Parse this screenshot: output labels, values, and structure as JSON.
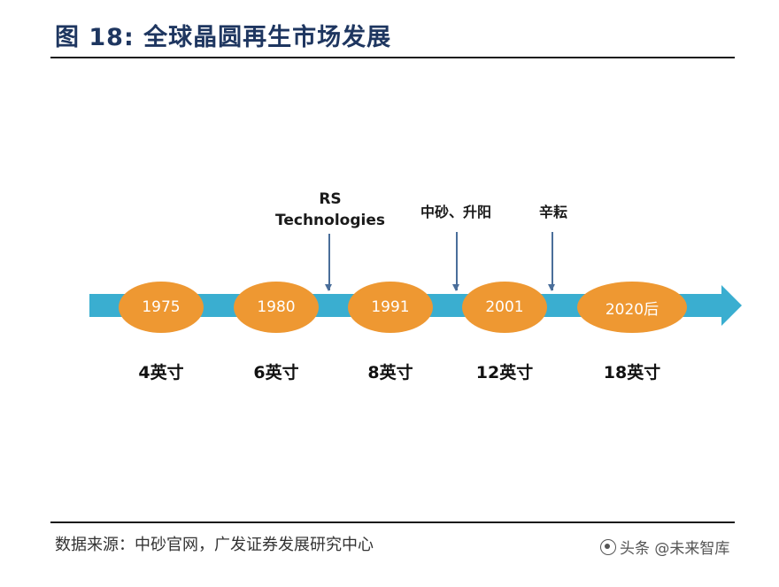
{
  "header": {
    "title": "图 18:  全球晶圆再生市场发展"
  },
  "timeline": {
    "nodes": [
      {
        "year": "1975",
        "size": "4英寸"
      },
      {
        "year": "1980",
        "size": "6英寸"
      },
      {
        "year": "1991",
        "size": "8英寸"
      },
      {
        "year": "2001",
        "size": "12英寸"
      },
      {
        "year": "2020后",
        "size": "18英寸"
      }
    ],
    "companies": [
      {
        "line1": "RS",
        "line2": "Technologies"
      },
      {
        "line1": "中砂、升阳"
      },
      {
        "line1": "辛耘"
      }
    ],
    "colors": {
      "axis": "#3aaed0",
      "node": "#ee9832",
      "node_text": "#ffffff"
    }
  },
  "footer": {
    "source": "数据来源：中砂官网，广发证券发展研究中心",
    "watermark": "头条 @未来智库"
  }
}
